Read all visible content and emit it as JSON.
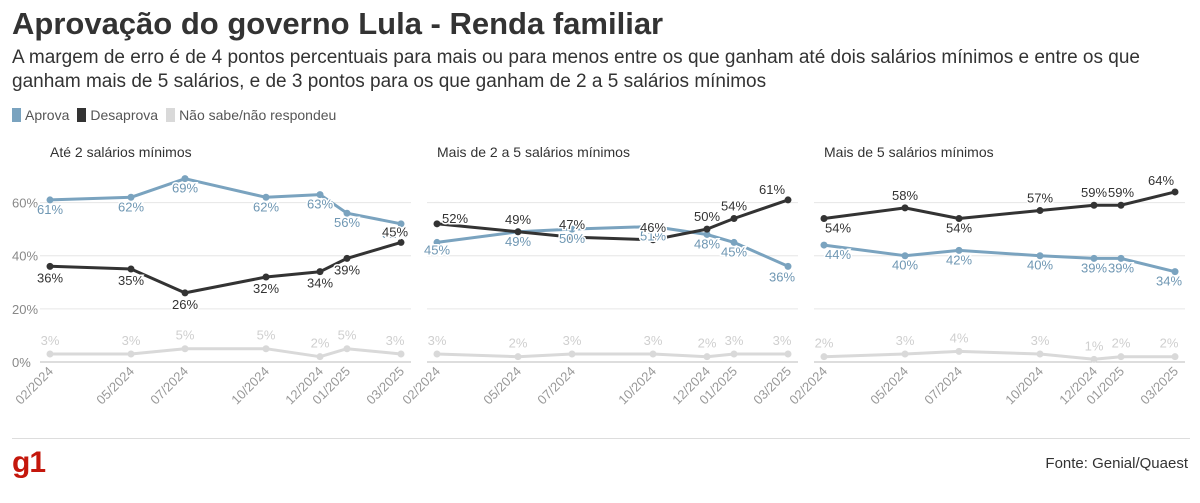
{
  "header": {
    "title": "Aprovação do governo Lula - Renda familiar",
    "subtitle": "A margem de erro é de 4 pontos percentuais para mais ou para menos entre os que ganham até dois salários mínimos e entre os que ganham mais de 5 salários, e de 3 pontos para os que ganham de 2 a 5 salários mínimos"
  },
  "legend": [
    {
      "label": "Aprova",
      "color": "#7aa3bf"
    },
    {
      "label": "Desaprova",
      "color": "#333333"
    },
    {
      "label": "Não sabe/não respondeu",
      "color": "#d9d9d9"
    }
  ],
  "footer": {
    "logo": "g1",
    "source": "Fonte: Genial/Quaest"
  },
  "chart_data": [
    {
      "type": "line",
      "title": "Até 2 salários mínimos",
      "x": [
        "02/2024",
        "05/2024",
        "07/2024",
        "10/2024",
        "12/2024",
        "01/2025",
        "03/2025"
      ],
      "ylim": [
        0,
        70
      ],
      "yticks": [
        "0%",
        "20%",
        "40%",
        "60%"
      ],
      "grid": true,
      "series": [
        {
          "name": "Aprova",
          "color": "#7aa3bf",
          "values": [
            61,
            62,
            69,
            62,
            63,
            56,
            52
          ]
        },
        {
          "name": "Desaprova",
          "color": "#333333",
          "values": [
            36,
            35,
            26,
            32,
            34,
            39,
            45
          ]
        },
        {
          "name": "Não sabe/não respondeu",
          "color": "#d9d9d9",
          "values": [
            3,
            3,
            5,
            5,
            2,
            5,
            3
          ]
        }
      ]
    },
    {
      "type": "line",
      "title": "Mais de 2 a 5 salários mínimos",
      "x": [
        "02/2024",
        "05/2024",
        "07/2024",
        "10/2024",
        "12/2024",
        "01/2025",
        "03/2025"
      ],
      "ylim": [
        0,
        70
      ],
      "grid": true,
      "series": [
        {
          "name": "Aprova",
          "color": "#7aa3bf",
          "values": [
            45,
            49,
            50,
            51,
            48,
            45,
            36
          ]
        },
        {
          "name": "Desaprova",
          "color": "#333333",
          "values": [
            52,
            49,
            47,
            46,
            50,
            54,
            61
          ]
        },
        {
          "name": "Não sabe/não respondeu",
          "color": "#d9d9d9",
          "values": [
            3,
            2,
            3,
            3,
            2,
            3,
            3
          ]
        }
      ]
    },
    {
      "type": "line",
      "title": "Mais de 5 salários mínimos",
      "x": [
        "02/2024",
        "05/2024",
        "07/2024",
        "10/2024",
        "12/2024",
        "01/2025",
        "03/2025"
      ],
      "ylim": [
        0,
        70
      ],
      "grid": true,
      "series": [
        {
          "name": "Aprova",
          "color": "#7aa3bf",
          "values": [
            44,
            40,
            42,
            40,
            39,
            39,
            34
          ]
        },
        {
          "name": "Desaprova",
          "color": "#333333",
          "values": [
            54,
            58,
            54,
            57,
            59,
            59,
            64
          ]
        },
        {
          "name": "Não sabe/não respondeu",
          "color": "#d9d9d9",
          "values": [
            2,
            3,
            4,
            3,
            1,
            2,
            2
          ]
        }
      ]
    }
  ]
}
